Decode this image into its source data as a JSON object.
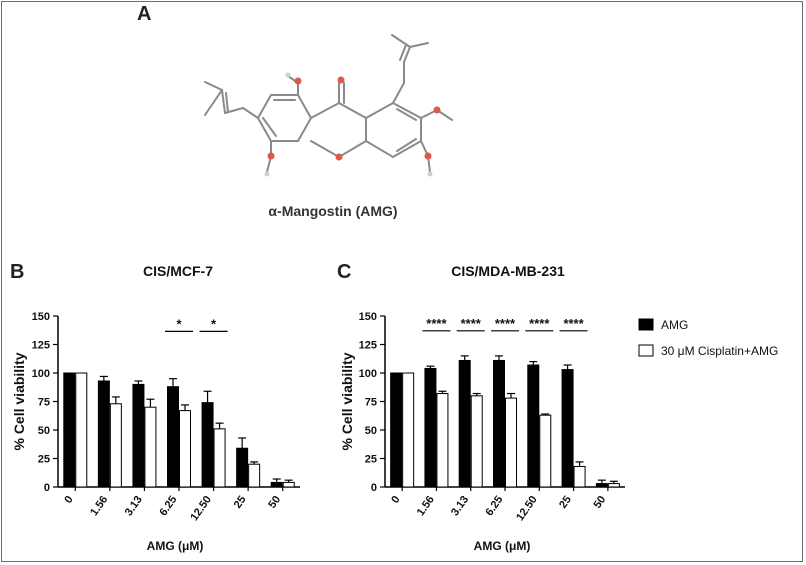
{
  "figure": {
    "panel_a": "A",
    "panel_b": "B",
    "panel_c": "C",
    "molecule_name": "α-Mangostin (AMG)"
  },
  "legend": {
    "items": [
      {
        "label": "AMG",
        "fill": "#000000"
      },
      {
        "label": "30 μM Cisplatin+AMG",
        "fill": "#ffffff"
      }
    ]
  },
  "colors": {
    "atom_oxygen": "#e0584a",
    "bond": "#8a8a8a",
    "bar_edge": "#000000"
  },
  "chart_data": [
    {
      "type": "bar",
      "title": "CIS/MCF-7",
      "xlabel": "AMG (μM)",
      "ylabel": "% Cell viability",
      "ylim": [
        0,
        150
      ],
      "yticks": [
        0,
        25,
        50,
        75,
        100,
        125,
        150
      ],
      "categories": [
        "0",
        "1.56",
        "3.13",
        "6.25",
        "12.50",
        "25",
        "50"
      ],
      "series": [
        {
          "name": "AMG",
          "values": [
            100,
            93,
            90,
            88,
            74,
            34,
            4
          ],
          "errors": [
            0,
            4,
            3,
            7,
            10,
            9,
            3
          ]
        },
        {
          "name": "30 μM Cisplatin+AMG",
          "values": [
            100,
            73,
            70,
            67,
            51,
            20,
            4
          ],
          "errors": [
            0,
            6,
            7,
            5,
            5,
            2,
            2
          ]
        }
      ],
      "significance": [
        {
          "category": "6.25",
          "label": "*"
        },
        {
          "category": "12.50",
          "label": "*"
        }
      ]
    },
    {
      "type": "bar",
      "title": "CIS/MDA-MB-231",
      "xlabel": "AMG (μM)",
      "ylabel": "% Cell viability",
      "ylim": [
        0,
        150
      ],
      "yticks": [
        0,
        25,
        50,
        75,
        100,
        125,
        150
      ],
      "categories": [
        "0",
        "1.56",
        "3.13",
        "6.25",
        "12.50",
        "25",
        "50"
      ],
      "series": [
        {
          "name": "AMG",
          "values": [
            100,
            104,
            111,
            111,
            107,
            103,
            3
          ],
          "errors": [
            0,
            2,
            4,
            4,
            3,
            4,
            3
          ]
        },
        {
          "name": "30 μM Cisplatin+AMG",
          "values": [
            100,
            82,
            80,
            78,
            63,
            18,
            3
          ],
          "errors": [
            0,
            2,
            2,
            4,
            1,
            4,
            2
          ]
        }
      ],
      "significance": [
        {
          "category": "1.56",
          "label": "****"
        },
        {
          "category": "3.13",
          "label": "****"
        },
        {
          "category": "6.25",
          "label": "****"
        },
        {
          "category": "12.50",
          "label": "****"
        },
        {
          "category": "25",
          "label": "****"
        }
      ]
    }
  ]
}
